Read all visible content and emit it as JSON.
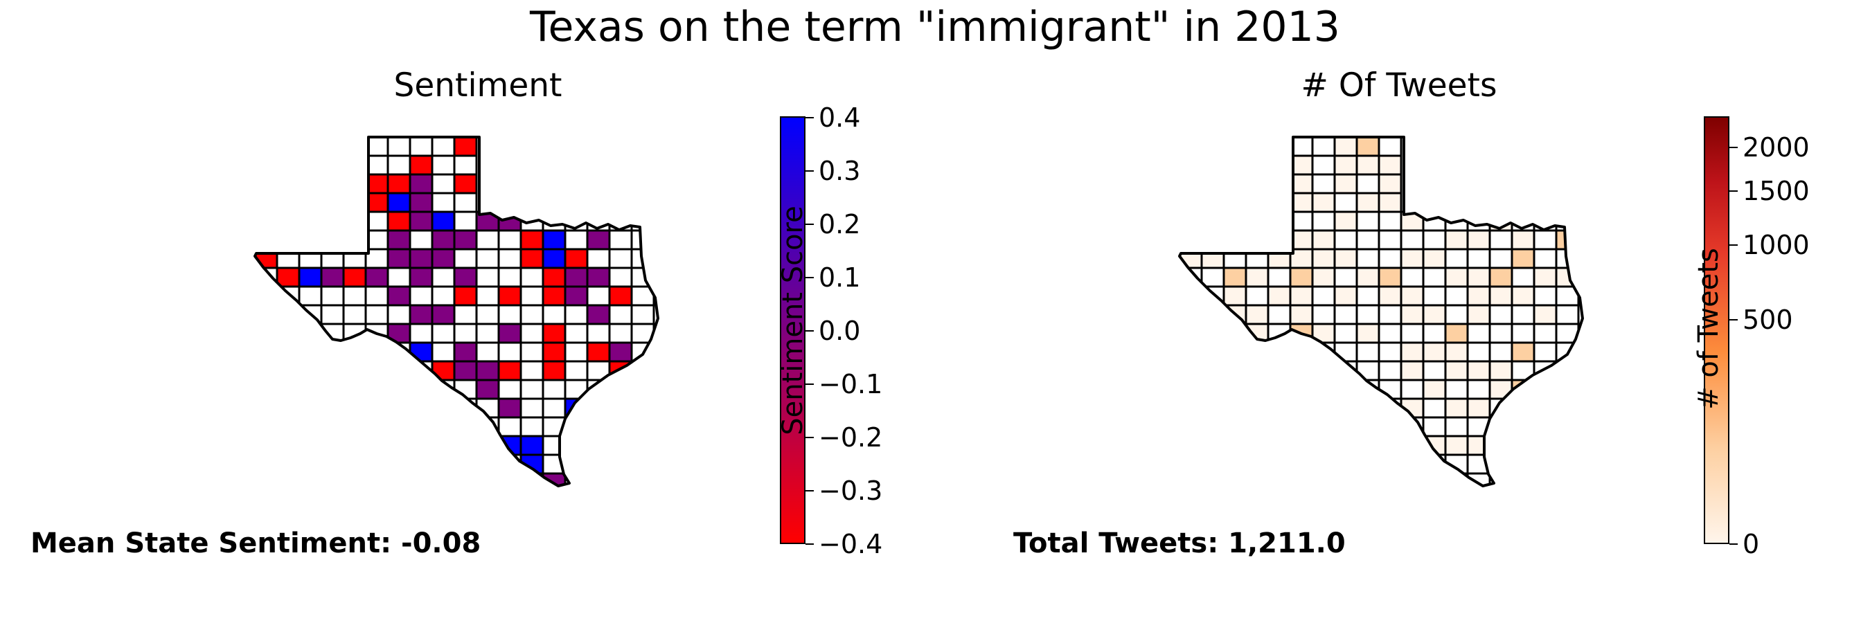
{
  "title": "Texas on the term \"immigrant\" in 2013",
  "panels": {
    "sentiment": {
      "title": "Sentiment",
      "stat_label": "Mean State Sentiment: -0.08",
      "colorbar_label": "Sentiment Score",
      "colorbar_ticks": [
        "0.4",
        "0.3",
        "0.2",
        "0.1",
        "0.0",
        "−0.1",
        "−0.2",
        "−0.3",
        "−0.4"
      ],
      "colors": {
        "high": "#0000ff",
        "mid": "#800080",
        "low": "#ff0000",
        "empty": "#ffffff"
      }
    },
    "tweets": {
      "title": "# Of Tweets",
      "stat_label": "Total Tweets: 1,211.0",
      "colorbar_label": "# of Tweets",
      "colorbar_ticks": [
        "2000",
        "1500",
        "1000",
        "500",
        "0"
      ],
      "colors": {
        "max": "#7f0000",
        "min": "#fff5eb",
        "light": "#fdd0a2",
        "empty": "#ffffff"
      }
    }
  }
}
